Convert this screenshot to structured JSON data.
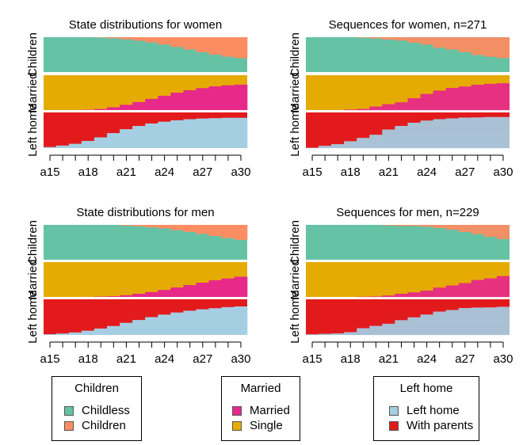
{
  "colors": {
    "childless": "#66c2a5",
    "children": "#fc8d62",
    "married": "#e7298a",
    "single": "#e6ab02",
    "left_home": "#a6cee3",
    "with_parents": "#e31a1c"
  },
  "chart_data": [
    {
      "type": "area",
      "title": "State distributions for women",
      "ylabels": [
        "Left home",
        "Married",
        "Children"
      ],
      "xticks": [
        "a15",
        "a18",
        "a21",
        "a24",
        "a27",
        "a30"
      ],
      "x": [
        15,
        16,
        17,
        18,
        19,
        20,
        21,
        22,
        23,
        24,
        25,
        26,
        27,
        28,
        29,
        30
      ],
      "channels": [
        {
          "name": "Children",
          "states": [
            "Childless",
            "Children"
          ],
          "share": [
            0,
            0,
            0,
            0,
            0.01,
            0.03,
            0.06,
            0.1,
            0.15,
            0.21,
            0.28,
            0.35,
            0.43,
            0.5,
            0.56,
            0.6
          ]
        },
        {
          "name": "Married",
          "states": [
            "Single",
            "Married"
          ],
          "share": [
            0,
            0,
            0,
            0.01,
            0.03,
            0.08,
            0.15,
            0.23,
            0.32,
            0.41,
            0.5,
            0.57,
            0.63,
            0.68,
            0.71,
            0.73
          ]
        },
        {
          "name": "Left home",
          "states": [
            "With parents",
            "Left home"
          ],
          "share": [
            0.03,
            0.07,
            0.12,
            0.2,
            0.3,
            0.42,
            0.53,
            0.62,
            0.69,
            0.74,
            0.78,
            0.81,
            0.83,
            0.84,
            0.85,
            0.85
          ]
        }
      ]
    },
    {
      "type": "heatmap",
      "title": "Sequences for women, n=271",
      "ylabels": [
        "Left home",
        "Married",
        "Children"
      ],
      "xticks": [
        "a15",
        "a18",
        "a21",
        "a24",
        "a27",
        "a30"
      ],
      "x": [
        15,
        16,
        17,
        18,
        19,
        20,
        21,
        22,
        23,
        24,
        25,
        26,
        27,
        28,
        29,
        30
      ],
      "n": 271
    },
    {
      "type": "area",
      "title": "State distributions for men",
      "ylabels": [
        "Left home",
        "Married",
        "Children"
      ],
      "xticks": [
        "a15",
        "a18",
        "a21",
        "a24",
        "a27",
        "a30"
      ],
      "x": [
        15,
        16,
        17,
        18,
        19,
        20,
        21,
        22,
        23,
        24,
        25,
        26,
        27,
        28,
        29,
        30
      ],
      "channels": [
        {
          "name": "Children",
          "states": [
            "Childless",
            "Children"
          ],
          "share": [
            0,
            0,
            0,
            0,
            0,
            0,
            0.02,
            0.04,
            0.07,
            0.1,
            0.15,
            0.2,
            0.26,
            0.32,
            0.38,
            0.43
          ]
        },
        {
          "name": "Married",
          "states": [
            "Single",
            "Married"
          ],
          "share": [
            0,
            0,
            0,
            0,
            0.01,
            0.02,
            0.05,
            0.09,
            0.14,
            0.2,
            0.27,
            0.34,
            0.41,
            0.48,
            0.53,
            0.58
          ]
        },
        {
          "name": "Left home",
          "states": [
            "With parents",
            "Left home"
          ],
          "share": [
            0.02,
            0.04,
            0.07,
            0.12,
            0.18,
            0.25,
            0.34,
            0.42,
            0.5,
            0.57,
            0.63,
            0.68,
            0.72,
            0.75,
            0.78,
            0.8
          ]
        }
      ]
    },
    {
      "type": "heatmap",
      "title": "Sequences for men, n=229",
      "ylabels": [
        "Left home",
        "Married",
        "Children"
      ],
      "xticks": [
        "a15",
        "a18",
        "a21",
        "a24",
        "a27",
        "a30"
      ],
      "x": [
        15,
        16,
        17,
        18,
        19,
        20,
        21,
        22,
        23,
        24,
        25,
        26,
        27,
        28,
        29,
        30
      ],
      "n": 229
    }
  ],
  "legends": [
    {
      "title": "Children",
      "items": [
        {
          "label": "Childless",
          "color": "#66c2a5"
        },
        {
          "label": "Children",
          "color": "#fc8d62"
        }
      ]
    },
    {
      "title": "Married",
      "items": [
        {
          "label": "Married",
          "color": "#e7298a"
        },
        {
          "label": "Single",
          "color": "#e6ab02"
        }
      ]
    },
    {
      "title": "Left home",
      "items": [
        {
          "label": "Left home",
          "color": "#a6cee3"
        },
        {
          "label": "With parents",
          "color": "#e31a1c"
        }
      ]
    }
  ]
}
